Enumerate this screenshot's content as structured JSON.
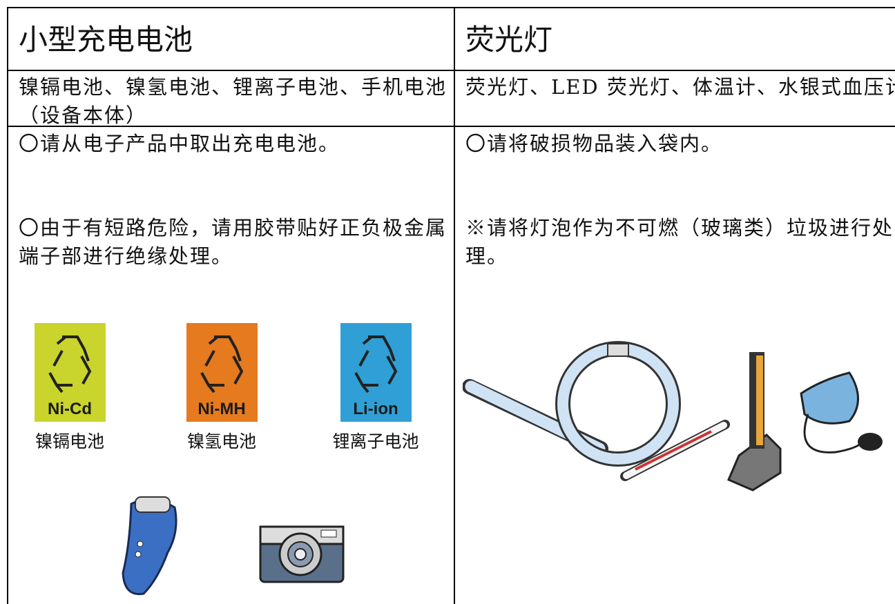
{
  "table": {
    "headers": [
      "小型充电电池",
      "荧光灯"
    ],
    "items": [
      "镍镉电池、镍氢电池、锂离子电池、手机电池（设备本体）",
      "荧光灯、LED 荧光灯、体温计、水银式血压计"
    ],
    "notes": [
      [
        "〇请从电子产品中取出充电电池。",
        "〇由于有短路危险，请用胶带贴好正负极金属端子部进行绝缘处理。"
      ],
      [
        "〇请将破损物品装入袋内。",
        "※请将灯泡作为不可燃（玻璃类）垃圾进行处理。"
      ]
    ],
    "battery_marks": [
      {
        "code": "Ni-Cd",
        "caption": "镍镉电池"
      },
      {
        "code": "Ni-MH",
        "caption": "镍氢电池"
      },
      {
        "code": "Li-ion",
        "caption": "锂离子电池"
      }
    ]
  }
}
